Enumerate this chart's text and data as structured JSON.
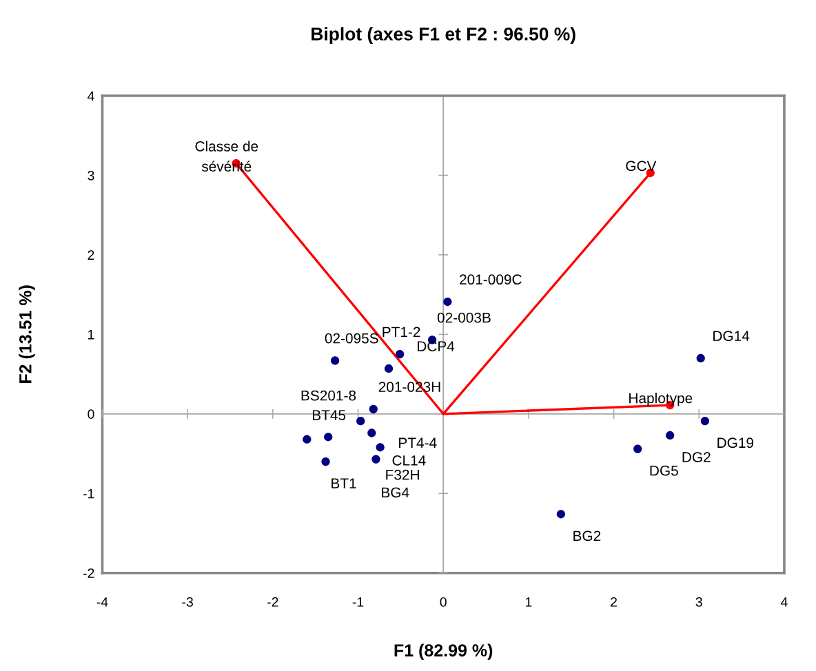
{
  "chart_data": {
    "type": "scatter",
    "title": "Biplot (axes F1 et F2 : 96.50 %)",
    "xlabel": "F1 (82.99 %)",
    "ylabel": "F2 (13.51 %)",
    "xlim": [
      -4,
      4
    ],
    "ylim": [
      -2,
      4
    ],
    "xticks": [
      -4,
      -3,
      -2,
      -1,
      0,
      1,
      2,
      3,
      4
    ],
    "yticks": [
      -2,
      -1,
      0,
      1,
      2,
      3,
      4
    ],
    "series": [
      {
        "color": "#000080",
        "marker": "circle",
        "x": [
          0.05,
          -0.13,
          -0.51,
          -0.64,
          -1.27,
          -0.82,
          -0.97,
          -0.84,
          -0.74,
          -0.79,
          -1.38,
          -1.6,
          -1.35,
          3.02,
          3.07,
          2.66,
          2.28,
          1.38
        ],
        "values": [
          1.41,
          0.93,
          0.75,
          0.57,
          0.67,
          0.06,
          -0.09,
          -0.24,
          -0.42,
          -0.57,
          -0.6,
          -0.32,
          -0.29,
          0.7,
          -0.09,
          -0.27,
          -0.44,
          -1.26
        ]
      },
      {
        "color": "#ff0000",
        "marker": "circle",
        "x": [
          -2.43,
          2.43,
          2.66
        ],
        "values": [
          3.15,
          3.03,
          0.11
        ]
      },
      {
        "type": "line",
        "name": "Classe de\nsévérité",
        "color": "#ff0000",
        "x": [
          0,
          -2.43
        ],
        "values": [
          0,
          3.15
        ]
      },
      {
        "type": "line",
        "name": "GCV",
        "color": "#ff0000",
        "x": [
          0,
          2.43
        ],
        "values": [
          0,
          3.03
        ]
      },
      {
        "type": "line",
        "name": "Haplotype",
        "color": "#ff0000",
        "x": [
          0,
          2.66
        ],
        "values": [
          0,
          0.11
        ]
      }
    ],
    "annotations": [
      {
        "text": "201-009C",
        "x": 0.05,
        "y": 1.41
      },
      {
        "text": "02-003B",
        "x": -0.13,
        "y": 0.93
      },
      {
        "text": "PT1-2",
        "x": -0.51,
        "y": 0.75
      },
      {
        "text": "DCP4",
        "x": -0.64,
        "y": 0.57
      },
      {
        "text": "02-095S",
        "x": -1.27,
        "y": 0.67
      },
      {
        "text": "201-023H",
        "x": -0.82,
        "y": 0.06
      },
      {
        "text": "PT4-4",
        "x": -0.97,
        "y": -0.09
      },
      {
        "text": "CL14",
        "x": -0.84,
        "y": -0.24
      },
      {
        "text": "F32H",
        "x": -0.74,
        "y": -0.42
      },
      {
        "text": "BG4",
        "x": -0.79,
        "y": -0.57
      },
      {
        "text": "BT1",
        "x": -1.38,
        "y": -0.6
      },
      {
        "text": "BT45",
        "x": -1.6,
        "y": -0.32
      },
      {
        "text": "BS201-8",
        "x": -1.35,
        "y": -0.29
      },
      {
        "text": "DG14",
        "x": 3.02,
        "y": 0.7
      },
      {
        "text": "DG19",
        "x": 3.07,
        "y": -0.09
      },
      {
        "text": "DG2",
        "x": 2.66,
        "y": -0.27
      },
      {
        "text": "DG5",
        "x": 2.28,
        "y": -0.44
      },
      {
        "text": "BG2",
        "x": 1.38,
        "y": -1.26
      }
    ]
  }
}
